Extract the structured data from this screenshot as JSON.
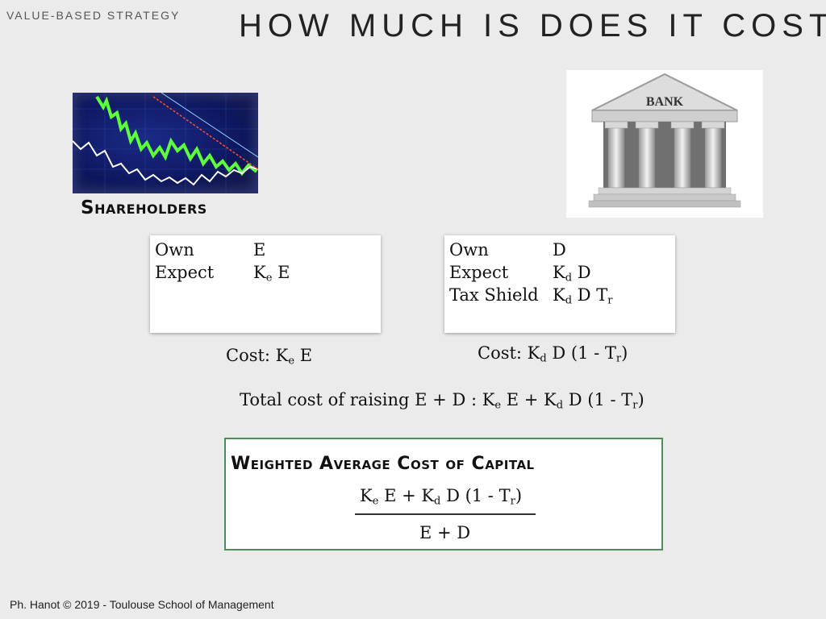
{
  "header": {
    "label": "VALUE-BASED STRATEGY",
    "title": "HOW MUCH IS DOES IT COST"
  },
  "images": {
    "stock_chart_icon": "stock-chart-icon",
    "bank_icon": "bank-building-icon",
    "bank_sign": "BANK"
  },
  "shareholders": {
    "label": "Shareholders",
    "card": {
      "own_label": "Own",
      "own_value": "E",
      "expect_label": "Expect",
      "expect_k": "K",
      "expect_sub": "e",
      "expect_rest": " E"
    },
    "cost": {
      "prefix": "Cost:  K",
      "sub": "e",
      "rest": " E"
    }
  },
  "bank": {
    "card": {
      "own_label": "Own",
      "own_value": "D",
      "expect_label": "Expect",
      "expect_k": "K",
      "expect_sub": "d",
      "expect_rest": " D",
      "tax_label": "Tax Shield",
      "tax_k": "K",
      "tax_sub": "d",
      "tax_mid": " D T",
      "tax_sub2": "r"
    },
    "cost": {
      "prefix": "Cost:    K",
      "sub": "d",
      "mid": " D (1 - T",
      "sub2": "r",
      "end": ")"
    }
  },
  "total": {
    "prefix": "Total cost of raising E + D : K",
    "sub": "e",
    "mid": " E +  K",
    "sub2": "d",
    "mid2": " D (1 - T",
    "sub3": "r",
    "end": ")"
  },
  "wacc": {
    "title": "Weighted Average Cost of Capital",
    "num_a": "K",
    "num_sub": "e",
    "num_b": " E +  K",
    "num_sub2": "d",
    "num_c": " D (1 - T",
    "num_sub3": "r",
    "num_end": ")",
    "denominator": "E + D",
    "border_color": "#4b8f58"
  },
  "footer": "Ph. Hanot © 2019  -  Toulouse School of Management"
}
